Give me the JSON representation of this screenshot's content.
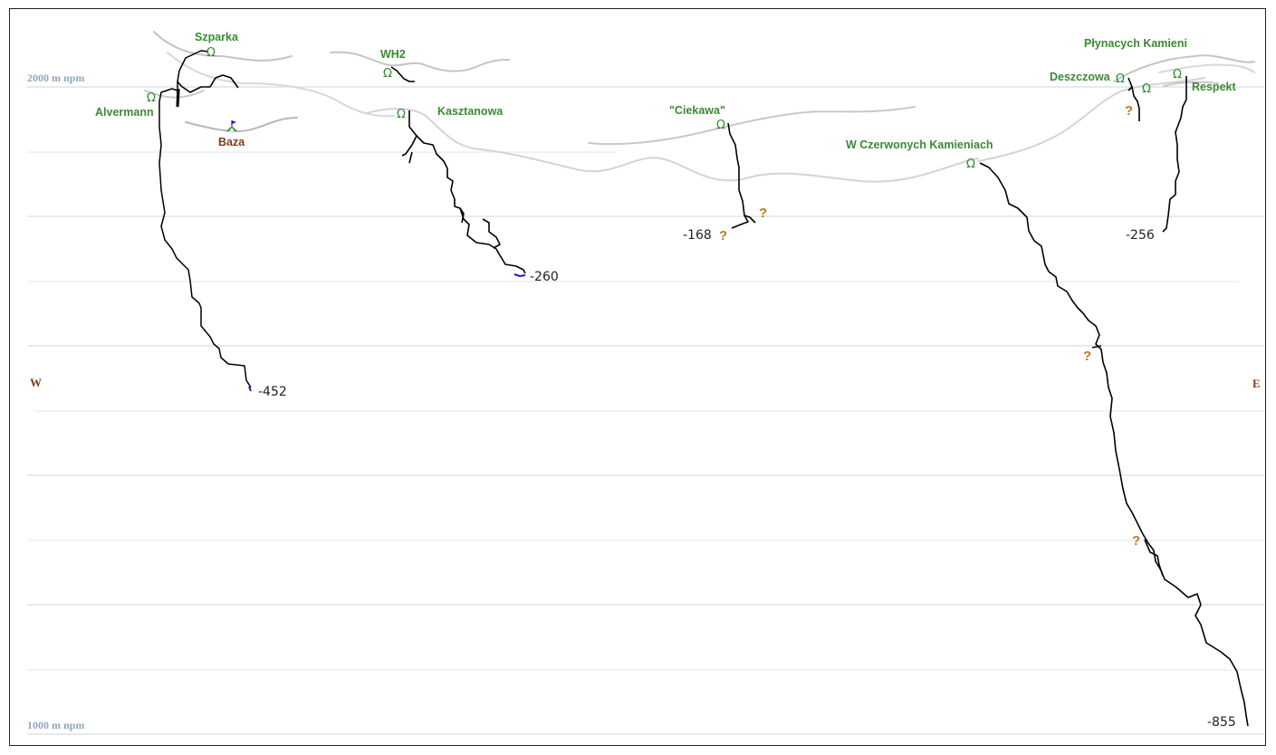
{
  "axis": {
    "top_label": "2000 m npm",
    "bottom_label": "1000 m npm",
    "west": "W",
    "east": "E"
  },
  "caves": {
    "szparka": "Szparka",
    "alvermann": "Alvermann",
    "baza": "Baza",
    "wh2": "WH2",
    "kasztanowa": "Kasztanowa",
    "ciekawa": "\"Ciekawa\"",
    "w_czerwonych": "W Czerwonych Kamieniach",
    "plynacych": "Płynacych Kamieni",
    "deszczowa": "Deszczowa",
    "respekt": "Respekt"
  },
  "depths": {
    "alvermann": "-452",
    "kasztanowa": "-260",
    "ciekawa": "-168",
    "respekt": "-256",
    "w_czerwonych": "-855"
  },
  "symbols": {
    "unknown": "?",
    "entrance": "Ω"
  },
  "colors": {
    "cave_label": "#3a8a33",
    "axis_label": "#8fa7bd",
    "survey_line": "#000000",
    "sump": "#1a1acc",
    "surface": "#b5b5b5",
    "grid": "#d3dde6",
    "question": "#c07a1e"
  }
}
